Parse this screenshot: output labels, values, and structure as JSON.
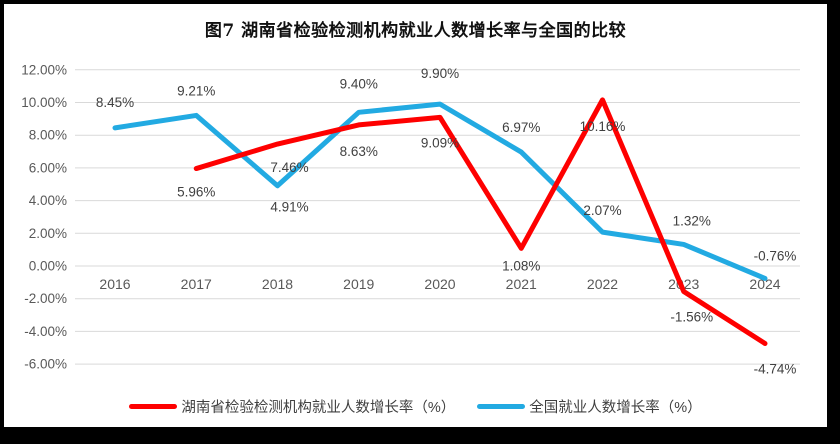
{
  "frame": {
    "border_color": "#000000",
    "chart_background": "#ffffff"
  },
  "chart": {
    "title": "图7 湖南省检验检测机构就业人数增长率与全国的比较"
  },
  "chart_data": {
    "type": "line",
    "categories": [
      "2016",
      "2017",
      "2018",
      "2019",
      "2020",
      "2021",
      "2022",
      "2023",
      "2024"
    ],
    "series": [
      {
        "name": "湖南省检验检测机构就业人数增长率（%）",
        "color": "#FE0000",
        "values": [
          null,
          5.96,
          7.46,
          8.63,
          9.09,
          1.08,
          10.16,
          -1.56,
          -4.74
        ],
        "label_offsets": [
          null,
          [
            0,
            28
          ],
          [
            12,
            28
          ],
          [
            0,
            31
          ],
          [
            0,
            30
          ],
          [
            0,
            22
          ],
          [
            0,
            31
          ],
          [
            8,
            30
          ],
          [
            10,
            30
          ]
        ]
      },
      {
        "name": "全国就业人数增长率（%）",
        "color": "#22AAE2",
        "values": [
          8.45,
          9.21,
          4.91,
          9.4,
          9.9,
          6.97,
          2.07,
          1.32,
          -0.76
        ],
        "label_offsets": [
          [
            0,
            -21
          ],
          [
            0,
            -20
          ],
          [
            12,
            26
          ],
          [
            0,
            -24
          ],
          [
            0,
            -26
          ],
          [
            0,
            -20
          ],
          [
            0,
            -17
          ],
          [
            8,
            -19
          ],
          [
            10,
            -18
          ]
        ]
      }
    ],
    "title": "图7 湖南省检验检测机构就业人数增长率与全国的比较",
    "xlabel": "",
    "ylabel": "",
    "ylim": [
      -6,
      12
    ],
    "ytick_step": 2,
    "yticks": [
      "12.00%",
      "10.00%",
      "8.00%",
      "6.00%",
      "4.00%",
      "2.00%",
      "0.00%",
      "-2.00%",
      "-4.00%",
      "-6.00%"
    ],
    "grid": "horizontal",
    "gridline_color": "#D9D9D9",
    "axis_text_color": "#595959",
    "data_label_color": "#404040",
    "legend_position": "bottom",
    "line_width": 5
  }
}
